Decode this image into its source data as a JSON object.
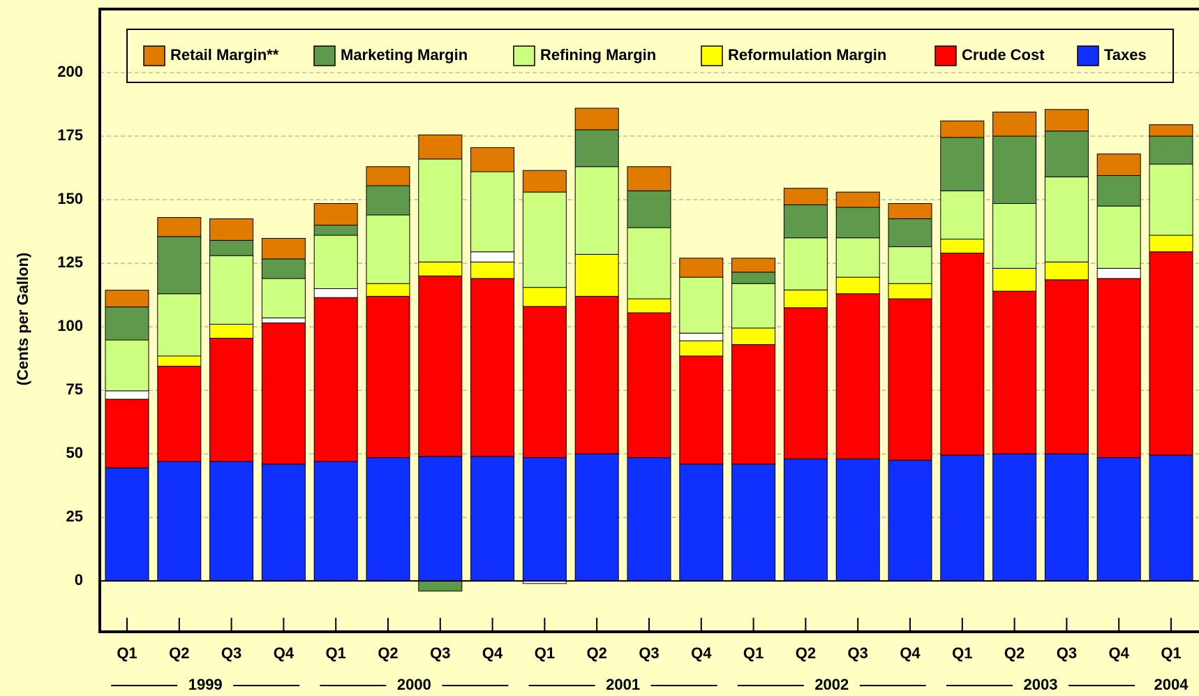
{
  "chart_data": {
    "type": "stacked_bar",
    "y_label": "(Cents per Gallon)",
    "categories": [
      "Q1",
      "Q2",
      "Q3",
      "Q4",
      "Q1",
      "Q2",
      "Q3",
      "Q4",
      "Q1",
      "Q2",
      "Q3",
      "Q4",
      "Q1",
      "Q2",
      "Q3",
      "Q4",
      "Q1",
      "Q2",
      "Q3",
      "Q4",
      "Q1"
    ],
    "years": [
      "1999",
      "2000",
      "2001",
      "2002",
      "2003",
      "2004"
    ],
    "series": [
      {
        "name": "Taxes",
        "color": "#1030ff",
        "values": [
          44.5,
          47,
          47,
          46,
          47,
          48.5,
          49,
          49,
          48.5,
          50,
          48.5,
          46,
          46,
          48,
          48,
          47.5,
          49.5,
          50,
          50,
          48.5,
          49.5
        ]
      },
      {
        "name": "Crude Cost",
        "color": "#ff0000",
        "values": [
          27,
          37.5,
          48.5,
          55.5,
          64.5,
          63.5,
          71,
          70,
          59.5,
          62,
          57,
          42.5,
          47,
          59.5,
          65,
          63.5,
          79.5,
          64,
          68.5,
          70.5,
          80
        ]
      },
      {
        "name": "Reformulation Margin",
        "color": "#ffff00",
        "values": [
          0,
          4,
          5.5,
          0,
          0,
          5,
          5.5,
          6.5,
          7.5,
          16.5,
          5.5,
          6,
          6.5,
          7,
          6.5,
          6,
          5.5,
          9,
          7,
          0,
          6.5
        ]
      },
      {
        "color": "#ffffff",
        "values": [
          3.3,
          0,
          0,
          2,
          3.5,
          0,
          0,
          4,
          -1,
          0,
          0,
          3,
          0,
          0,
          0,
          0,
          0,
          0,
          0,
          4,
          0
        ]
      },
      {
        "name": "Refining Margin",
        "color": "#ccff80",
        "values": [
          20,
          24.5,
          27,
          15.5,
          21,
          27,
          40.5,
          31.5,
          37.5,
          34.5,
          28,
          22,
          17.5,
          20.5,
          15.5,
          14.5,
          19,
          25.5,
          33.5,
          24.5,
          28
        ]
      },
      {
        "name": "Marketing Margin",
        "color": "#5f9a4c",
        "values": [
          13,
          22.5,
          6,
          7.7,
          4,
          11.5,
          -4,
          0,
          0,
          14.5,
          14.5,
          0,
          4.5,
          13,
          12,
          11,
          21,
          26.5,
          18,
          12,
          11
        ]
      },
      {
        "name": "Retail Margin**",
        "color": "#e07b00",
        "values": [
          6.6,
          7.5,
          8.5,
          8.1,
          8.5,
          7.5,
          9.5,
          9.5,
          8.5,
          8.5,
          9.5,
          7.5,
          5.5,
          6.5,
          6,
          6,
          6.5,
          9.5,
          8.5,
          8.5,
          4.5
        ]
      }
    ],
    "ylim": [
      -20,
      225
    ],
    "yticks": [
      0,
      25,
      50,
      75,
      100,
      125,
      150,
      175,
      200
    ],
    "grid": true
  }
}
